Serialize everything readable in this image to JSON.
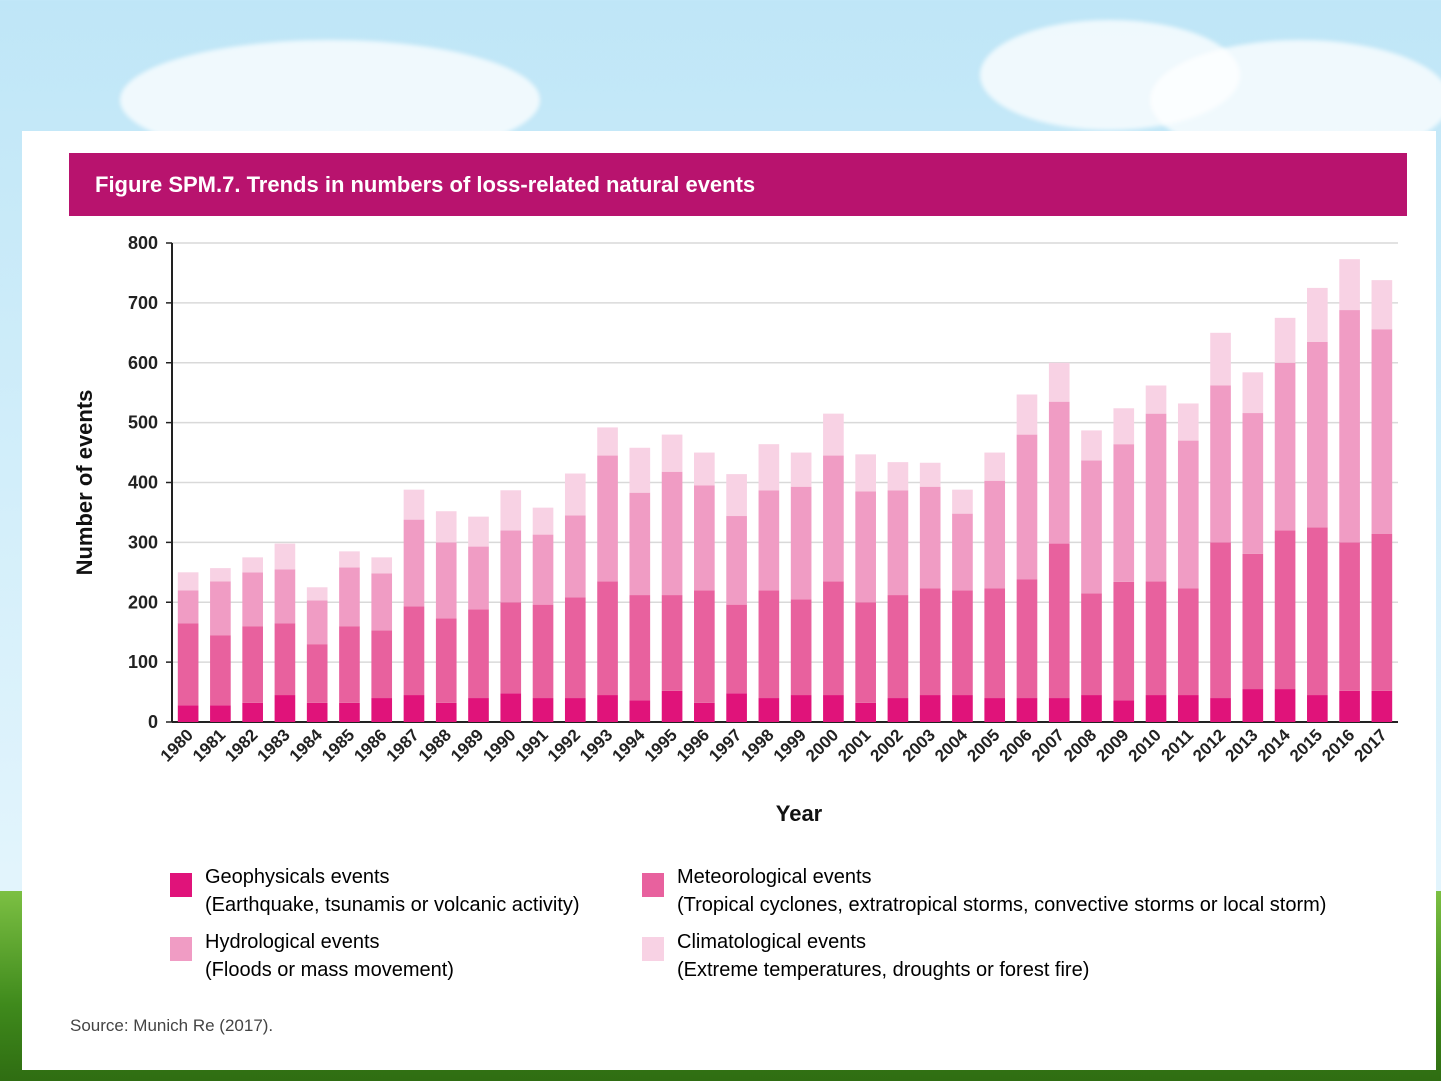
{
  "colors": {
    "title_bar": "#b8136e",
    "geophysical": "#e0137a",
    "meteorological": "#e8619e",
    "hydrological": "#f09cc4",
    "climatological": "#f8d2e4"
  },
  "title": "Figure SPM.7. Trends in numbers of loss-related natural events",
  "source": "Source: Munich Re (2017).",
  "legend": [
    {
      "label": "Geophysicals events",
      "sublabel": "(Earthquake, tsunamis or volcanic activity)"
    },
    {
      "label": "Meteorological events",
      "sublabel": "(Tropical cyclones, extratropical storms, convective storms or local storm)"
    },
    {
      "label": "Hydrological events",
      "sublabel": "(Floods or mass movement)"
    },
    {
      "label": "Climatological events",
      "sublabel": "(Extreme temperatures, droughts or forest fire)"
    }
  ],
  "chart_data": {
    "type": "bar",
    "stacked": true,
    "title": "Figure SPM.7. Trends in numbers of loss-related natural events",
    "xlabel": "Year",
    "ylabel": "Number of events",
    "ylim": [
      0,
      800
    ],
    "yticks": [
      0,
      100,
      200,
      300,
      400,
      500,
      600,
      700,
      800
    ],
    "grid": true,
    "categories": [
      "1980",
      "1981",
      "1982",
      "1983",
      "1984",
      "1985",
      "1986",
      "1987",
      "1988",
      "1989",
      "1990",
      "1991",
      "1992",
      "1993",
      "1994",
      "1995",
      "1996",
      "1997",
      "1998",
      "1999",
      "2000",
      "2001",
      "2002",
      "2003",
      "2004",
      "2005",
      "2006",
      "2007",
      "2008",
      "2009",
      "2010",
      "2011",
      "2012",
      "2013",
      "2014",
      "2015",
      "2016",
      "2017"
    ],
    "series": [
      {
        "name": "Geophysicals events",
        "values": [
          28,
          28,
          32,
          45,
          32,
          32,
          40,
          45,
          32,
          40,
          48,
          40,
          40,
          45,
          36,
          52,
          32,
          48,
          40,
          45,
          45,
          32,
          40,
          45,
          45,
          40,
          40,
          40,
          45,
          36,
          45,
          45,
          40,
          55,
          55,
          45,
          52,
          52
        ]
      },
      {
        "name": "Meteorological events",
        "values": [
          137,
          117,
          128,
          120,
          98,
          128,
          113,
          148,
          141,
          148,
          152,
          156,
          168,
          190,
          176,
          160,
          188,
          148,
          180,
          160,
          190,
          168,
          172,
          178,
          175,
          183,
          198,
          258,
          170,
          198,
          190,
          178,
          260,
          226,
          265,
          280,
          248,
          262
        ]
      },
      {
        "name": "Hydrological events",
        "values": [
          55,
          90,
          90,
          90,
          73,
          98,
          95,
          145,
          127,
          105,
          120,
          117,
          137,
          210,
          171,
          206,
          175,
          148,
          167,
          188,
          210,
          185,
          175,
          170,
          128,
          180,
          242,
          237,
          222,
          230,
          280,
          247,
          262,
          235,
          280,
          310,
          388,
          342
        ]
      },
      {
        "name": "Climatological events",
        "values": [
          30,
          22,
          25,
          43,
          22,
          27,
          27,
          50,
          52,
          50,
          67,
          45,
          70,
          47,
          75,
          62,
          55,
          70,
          77,
          57,
          70,
          62,
          47,
          40,
          40,
          47,
          67,
          65,
          50,
          60,
          47,
          62,
          88,
          68,
          75,
          90,
          85,
          82
        ]
      }
    ]
  }
}
